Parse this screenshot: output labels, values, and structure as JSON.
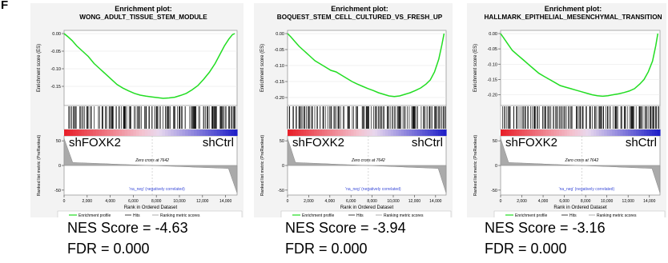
{
  "figure": {
    "panel_letter": "F"
  },
  "chart_data": [
    {
      "type": "line",
      "subtype": "gsea-enrichment-plot",
      "title": "Enrichment plot:",
      "subtitle": "WONG_ADULT_TISSUE_STEM_MODULE",
      "es_ylabel": "Enrichment score (ES)",
      "es_ylim": [
        -0.2,
        0.0
      ],
      "es_yticks": [
        "0.00",
        "-0.05",
        "-0.10",
        "-0.15"
      ],
      "es_curve": {
        "x": [
          0,
          300,
          700,
          1100,
          1600,
          2100,
          2600,
          3100,
          3600,
          4100,
          4600,
          5100,
          5600,
          6100,
          6600,
          7100,
          7600,
          8100,
          8600,
          9100,
          9600,
          10100,
          10600,
          11100,
          11600,
          12100,
          12600,
          13100,
          13500,
          13900,
          14300,
          14600,
          14800
        ],
        "y": [
          0.0,
          -0.008,
          -0.02,
          -0.035,
          -0.05,
          -0.065,
          -0.085,
          -0.1,
          -0.115,
          -0.13,
          -0.145,
          -0.155,
          -0.163,
          -0.17,
          -0.175,
          -0.178,
          -0.18,
          -0.182,
          -0.184,
          -0.183,
          -0.181,
          -0.176,
          -0.17,
          -0.16,
          -0.148,
          -0.13,
          -0.11,
          -0.085,
          -0.06,
          -0.035,
          -0.015,
          -0.003,
          0.0
        ]
      },
      "hits_density": [
        0.45,
        0.75,
        0.8,
        0.6,
        0.8,
        0.7,
        0.85,
        0.8,
        0.75,
        0.75,
        0.9,
        0.85,
        0.9,
        0.8,
        0.85,
        0.85,
        0.9,
        0.9,
        0.95,
        0.95
      ],
      "group_labels": {
        "left": "shFOXK2",
        "right": "shCtrl"
      },
      "zero_cross_label": "Zero cross at 7642",
      "neg_label": "'na_neg' (negatively correlated)",
      "ranked_ylabel": "Ranked list metric (PreRanked)",
      "ranked_ylim": [
        -60,
        60
      ],
      "ranked_yticks": [
        "50",
        "0",
        "-50"
      ],
      "xlabel": "Rank in Ordered Dataset",
      "xlim": [
        0,
        15000
      ],
      "xticks": [
        0,
        2000,
        4000,
        6000,
        8000,
        10000,
        12000,
        14000
      ],
      "xtick_labels": [
        "0",
        "2,000",
        "4,000",
        "6,000",
        "8,000",
        "10,000",
        "12,000",
        "14,000"
      ],
      "legend": [
        "Enrichment profile",
        "Hits",
        "Ranking metric scores"
      ],
      "nes_label": "NES Score = -4.63",
      "fdr_label": "FDR = 0.000"
    },
    {
      "type": "line",
      "subtype": "gsea-enrichment-plot",
      "title": "Enrichment plot:",
      "subtitle": "BOQUEST_STEM_CELL_CULTURED_VS_FRESH_UP",
      "es_ylabel": "Enrichment score (ES)",
      "es_ylim": [
        -0.22,
        0.0
      ],
      "es_yticks": [
        "0.00",
        "-0.05",
        "-0.10",
        "-0.15",
        "-0.20"
      ],
      "es_curve": {
        "x": [
          0,
          300,
          700,
          1100,
          1600,
          2100,
          2600,
          3100,
          3600,
          4100,
          4600,
          5100,
          5600,
          6100,
          6600,
          7100,
          7600,
          8100,
          8600,
          9100,
          9600,
          10100,
          10600,
          11100,
          11600,
          12100,
          12600,
          13100,
          13500,
          13900,
          14300,
          14600,
          14800
        ],
        "y": [
          0.0,
          -0.01,
          -0.025,
          -0.04,
          -0.055,
          -0.07,
          -0.085,
          -0.095,
          -0.105,
          -0.115,
          -0.12,
          -0.13,
          -0.14,
          -0.15,
          -0.158,
          -0.165,
          -0.172,
          -0.178,
          -0.185,
          -0.19,
          -0.195,
          -0.197,
          -0.195,
          -0.19,
          -0.185,
          -0.178,
          -0.17,
          -0.158,
          -0.145,
          -0.12,
          -0.08,
          -0.035,
          0.0
        ]
      },
      "hits_density": [
        0.7,
        0.9,
        0.85,
        0.7,
        0.75,
        0.8,
        0.9,
        0.85,
        0.8,
        0.85,
        0.9,
        0.9,
        0.85,
        0.8,
        0.9,
        0.95,
        0.9,
        0.85,
        0.9,
        0.95
      ],
      "group_labels": {
        "left": "shFOXK2",
        "right": "shCtrl"
      },
      "zero_cross_label": "Zero cross at 7642",
      "neg_label": "'na_neg' (negatively correlated)",
      "ranked_ylabel": "Ranked list metric (PreRanked)",
      "ranked_ylim": [
        -60,
        60
      ],
      "ranked_yticks": [
        "50",
        "0",
        "-50"
      ],
      "xlabel": "Rank in Ordered Dataset",
      "xlim": [
        0,
        15000
      ],
      "xticks": [
        0,
        2000,
        4000,
        6000,
        8000,
        10000,
        12000,
        14000
      ],
      "xtick_labels": [
        "0",
        "2,000",
        "4,000",
        "6,000",
        "8,000",
        "10,000",
        "12,000",
        "14,000"
      ],
      "legend": [
        "Enrichment profile",
        "Hits",
        "Ranking metric scores"
      ],
      "nes_label": "NES Score = -3.94",
      "fdr_label": "FDR = 0.000"
    },
    {
      "type": "line",
      "subtype": "gsea-enrichment-plot",
      "title": "Enrichment plot:",
      "subtitle": "HALLMARK_EPITHELIAL_MESENCHYMAL_TRANSITION",
      "es_ylabel": "Enrichment score (ES)",
      "es_ylim": [
        -0.23,
        0.0
      ],
      "es_yticks": [
        "0.00",
        "-0.05",
        "-0.10",
        "-0.15",
        "-0.20"
      ],
      "es_curve": {
        "x": [
          0,
          300,
          700,
          1100,
          1600,
          2100,
          2600,
          3100,
          3600,
          4100,
          4600,
          5100,
          5600,
          6100,
          6600,
          7100,
          7600,
          8100,
          8600,
          9100,
          9600,
          10100,
          10600,
          11100,
          11600,
          12100,
          12600,
          13100,
          13500,
          13900,
          14300,
          14600,
          14800
        ],
        "y": [
          0.0,
          -0.015,
          -0.035,
          -0.055,
          -0.07,
          -0.085,
          -0.1,
          -0.115,
          -0.13,
          -0.14,
          -0.15,
          -0.16,
          -0.17,
          -0.175,
          -0.18,
          -0.185,
          -0.19,
          -0.195,
          -0.2,
          -0.203,
          -0.205,
          -0.203,
          -0.2,
          -0.197,
          -0.193,
          -0.188,
          -0.18,
          -0.165,
          -0.15,
          -0.125,
          -0.09,
          -0.04,
          0.0
        ]
      },
      "hits_density": [
        0.6,
        0.85,
        0.7,
        0.8,
        0.75,
        0.7,
        0.8,
        0.85,
        0.8,
        0.75,
        0.85,
        0.9,
        0.85,
        0.8,
        0.85,
        0.9,
        0.9,
        0.95,
        0.95,
        0.95
      ],
      "group_labels": {
        "left": "shFOXK2",
        "right": "shCtrl"
      },
      "zero_cross_label": "Zero cross at 7642",
      "neg_label": "'na_neg' (negatively correlated)",
      "ranked_ylabel": "Ranked list metric (PreRanked)",
      "ranked_ylim": [
        -60,
        60
      ],
      "ranked_yticks": [
        "50",
        "0",
        "-50"
      ],
      "xlabel": "Rank in Ordered Dataset",
      "xlim": [
        0,
        15000
      ],
      "xticks": [
        0,
        2000,
        4000,
        6000,
        8000,
        10000,
        12000,
        14000
      ],
      "xtick_labels": [
        "0",
        "2,000",
        "4,000",
        "6,000",
        "8,000",
        "10,000",
        "12,000",
        "14,000"
      ],
      "legend": [
        "Enrichment profile",
        "Hits",
        "Ranking metric scores"
      ],
      "nes_label": "NES Score = -3.16",
      "fdr_label": "FDR = 0.000"
    }
  ],
  "colors": {
    "curve": "#22dd22",
    "heat_red": "#e8202a",
    "heat_pink": "#f4c2cf",
    "heat_blue": "#2020c8",
    "neg_text": "#3a4bd8",
    "panel_bg": "#f3f3f3"
  }
}
